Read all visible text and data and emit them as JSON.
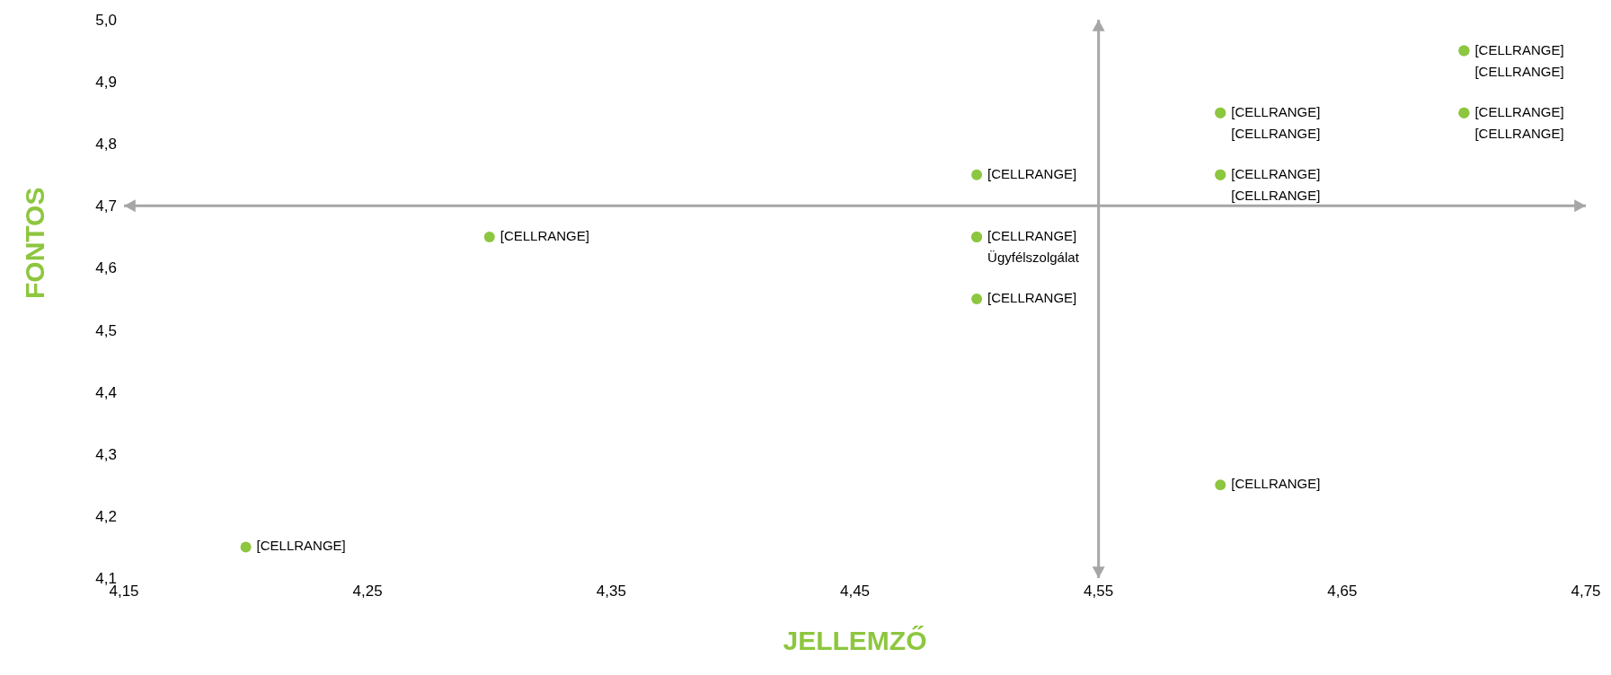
{
  "chart_data": {
    "type": "scatter",
    "xlabel": "JELLEMZŐ",
    "ylabel": "FONTOS",
    "xlim": [
      4.15,
      4.75
    ],
    "ylim": [
      4.1,
      5.0
    ],
    "xticks": [
      {
        "value": 4.15,
        "label": "4,15"
      },
      {
        "value": 4.25,
        "label": "4,25"
      },
      {
        "value": 4.35,
        "label": "4,35"
      },
      {
        "value": 4.45,
        "label": "4,45"
      },
      {
        "value": 4.55,
        "label": "4,55"
      },
      {
        "value": 4.65,
        "label": "4,65"
      },
      {
        "value": 4.75,
        "label": "4,75"
      }
    ],
    "yticks": [
      {
        "value": 4.1,
        "label": "4,1"
      },
      {
        "value": 4.2,
        "label": "4,2"
      },
      {
        "value": 4.3,
        "label": "4,3"
      },
      {
        "value": 4.4,
        "label": "4,4"
      },
      {
        "value": 4.5,
        "label": "4,5"
      },
      {
        "value": 4.6,
        "label": "4,6"
      },
      {
        "value": 4.7,
        "label": "4,7"
      },
      {
        "value": 4.8,
        "label": "4,8"
      },
      {
        "value": 4.9,
        "label": "4,9"
      },
      {
        "value": 5.0,
        "label": "5,0"
      }
    ],
    "grid": false,
    "legend": false,
    "marker": "circle",
    "ref_lines": [
      {
        "axis": "x",
        "value": 4.55,
        "color": "#a6a6a6"
      },
      {
        "axis": "y",
        "value": 4.7,
        "color": "#a6a6a6"
      }
    ],
    "series": [
      {
        "color": "#8dc63f",
        "x": [
          4.7,
          4.7,
          4.7,
          4.7,
          4.6,
          4.6,
          4.6,
          4.6,
          4.5,
          4.3,
          4.5,
          4.5,
          4.5,
          4.6,
          4.2
        ],
        "values": [
          4.95,
          4.95,
          4.85,
          4.85,
          4.85,
          4.85,
          4.75,
          4.75,
          4.75,
          4.65,
          4.65,
          4.65,
          4.55,
          4.25,
          4.15
        ],
        "value_labels": [
          "[CELLRANGE]",
          "[CELLRANGE]",
          "[CELLRANGE]",
          "[CELLRANGE]",
          "[CELLRANGE]",
          "[CELLRANGE]",
          "[CELLRANGE]",
          "[CELLRANGE]",
          "[CELLRANGE]",
          "[CELLRANGE]",
          "[CELLRANGE]",
          "Ügyfélszolgálat",
          "[CELLRANGE]",
          "[CELLRANGE]",
          "[CELLRANGE]"
        ]
      }
    ]
  }
}
